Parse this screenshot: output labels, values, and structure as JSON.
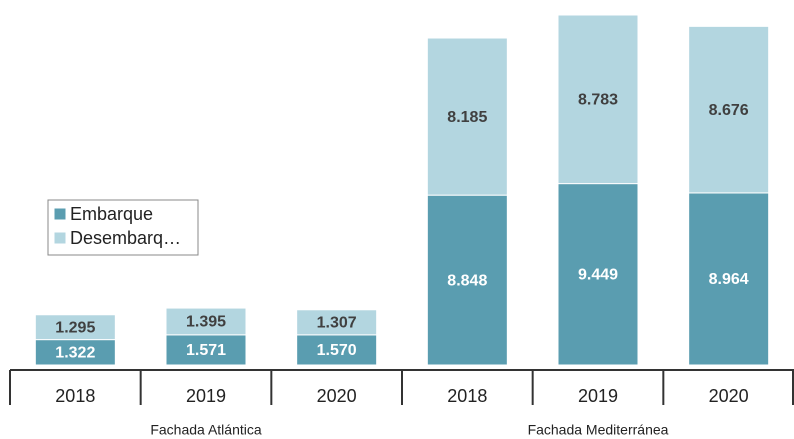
{
  "chart_data": {
    "type": "stacked-bar",
    "groups": [
      {
        "name": "Fachada Atlántica",
        "categories": [
          "2018",
          "2019",
          "2020"
        ]
      },
      {
        "name": "Fachada Mediterránea",
        "categories": [
          "2018",
          "2019",
          "2020"
        ]
      }
    ],
    "series": [
      {
        "name": "Embarque",
        "color": "#5a9db0",
        "values": [
          1322,
          1571,
          1570,
          8848,
          9449,
          8964
        ],
        "value_labels": [
          "1.322",
          "1.571",
          "1.570",
          "8.848",
          "9.449",
          "8.964"
        ]
      },
      {
        "name": "Desembarq…",
        "color": "#b3d6e0",
        "values": [
          1295,
          1395,
          1307,
          8185,
          8783,
          8676
        ],
        "value_labels": [
          "1.295",
          "1.395",
          "1.307",
          "8.185",
          "8.783",
          "8.676"
        ]
      }
    ]
  }
}
